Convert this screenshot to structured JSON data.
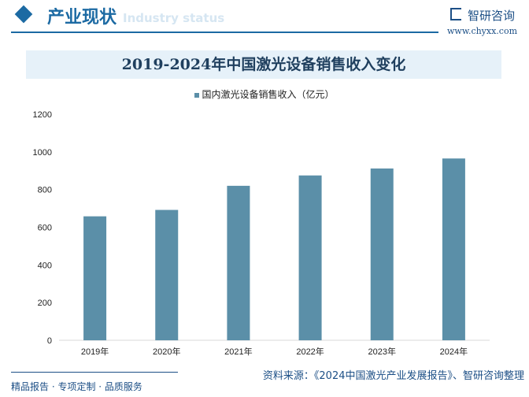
{
  "header": {
    "section_title": "产业现状",
    "section_subtitle": "Industry status",
    "logo_text": "智研咨询",
    "logo_url": "www.chyxx.com"
  },
  "footer": {
    "left_text": "精品报告 · 专项定制 · 品质服务",
    "source": "资料来源：《2024中国激光产业发展报告》、智研咨询整理"
  },
  "colors": {
    "bar": "#5b8fa8",
    "accent": "#1c6aa3",
    "title_bg": "#e6f1f9"
  },
  "chart_data": {
    "type": "bar",
    "title": "2019-2024年中国激光设备销售收入变化",
    "categories": [
      "2019年",
      "2020年",
      "2021年",
      "2022年",
      "2023年",
      "2024年"
    ],
    "series": [
      {
        "name": "国内激光设备销售收入（亿元）",
        "values": [
          658,
          692,
          820,
          875,
          912,
          965
        ]
      }
    ],
    "ylim": [
      0,
      1200
    ],
    "yticks": [
      0,
      200,
      400,
      600,
      800,
      1000,
      1200
    ],
    "grid": false,
    "legend": "top-center",
    "xlabel": "",
    "ylabel": ""
  }
}
